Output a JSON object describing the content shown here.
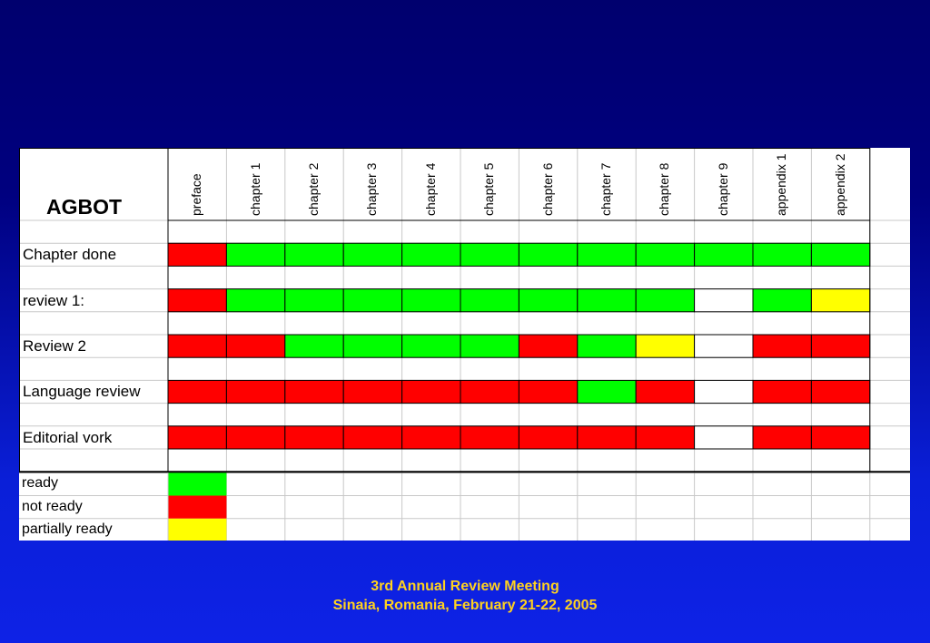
{
  "title": "AGBOT",
  "columns": [
    "preface",
    "chapter 1",
    "chapter 2",
    "chapter 3",
    "chapter 4",
    "chapter 5",
    "chapter 6",
    "chapter 7",
    "chapter 8",
    "chapter 9",
    "appendix 1",
    "appendix 2"
  ],
  "rows": [
    {
      "label": "Chapter done",
      "status": [
        "not ready",
        "ready",
        "ready",
        "ready",
        "ready",
        "ready",
        "ready",
        "ready",
        "ready",
        "ready",
        "ready",
        "ready"
      ]
    },
    {
      "label": "review 1:",
      "status": [
        "not ready",
        "ready",
        "ready",
        "ready",
        "ready",
        "ready",
        "ready",
        "ready",
        "ready",
        "empty",
        "ready",
        "partially ready"
      ]
    },
    {
      "label": "Review 2",
      "status": [
        "not ready",
        "not ready",
        "ready",
        "ready",
        "ready",
        "ready",
        "not ready",
        "ready",
        "partially ready",
        "empty",
        "not ready",
        "not ready"
      ]
    },
    {
      "label": "Language review",
      "status": [
        "not ready",
        "not ready",
        "not ready",
        "not ready",
        "not ready",
        "not ready",
        "not ready",
        "ready",
        "not ready",
        "empty",
        "not ready",
        "not ready"
      ]
    },
    {
      "label": "Editorial vork",
      "status": [
        "not ready",
        "not ready",
        "not ready",
        "not ready",
        "not ready",
        "not ready",
        "not ready",
        "not ready",
        "not ready",
        "empty",
        "not ready",
        "not ready"
      ]
    }
  ],
  "legend": [
    {
      "label": "ready",
      "status": "ready"
    },
    {
      "label": "not ready",
      "status": "not ready"
    },
    {
      "label": "partially ready",
      "status": "partially ready"
    }
  ],
  "colors": {
    "ready": "#00ff00",
    "not ready": "#ff0000",
    "partially ready": "#ffff00",
    "empty": "#ffffff"
  },
  "footer": {
    "line1": "3rd Annual Review Meeting",
    "line2": "Sinaia, Romania, February 21-22, 2005"
  }
}
